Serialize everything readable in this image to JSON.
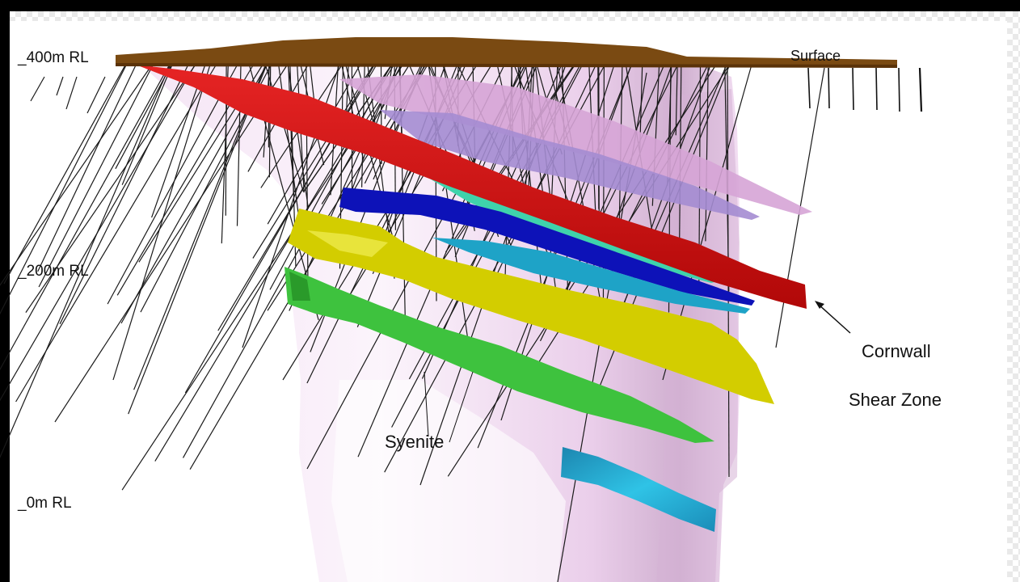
{
  "rl_labels": {
    "rl_400": "_400m RL",
    "rl_200": "_200m RL",
    "rl_0": "_0m RL"
  },
  "annotations": {
    "surface": "Surface",
    "syenite": "Syenite",
    "cornwall_line1": "Cornwall",
    "cornwall_line2": "Shear Zone"
  },
  "colors": {
    "surface": "#7a4a12",
    "syenite": "#efd6ef",
    "red_shear": "#d30d0d",
    "blue_lode": "#0a10b5",
    "cyan_lode": "#1a9fc2",
    "yellow_lode": "#d2cc00",
    "green_lode": "#3cbf3c",
    "teal_lode": "#3ad0a8",
    "violet_lode": "#a98ecf",
    "lilac_lode": "#d8a6d8",
    "drillhole": "#1a1a1a"
  }
}
